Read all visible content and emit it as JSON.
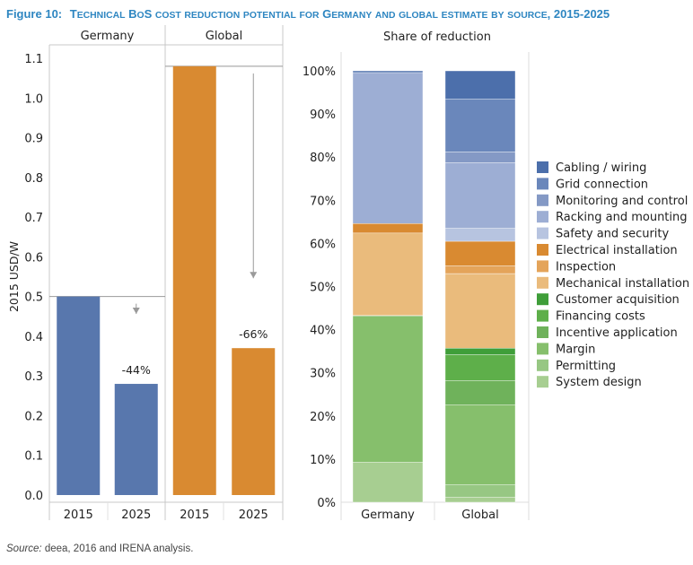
{
  "figure": {
    "title_prefix": "Figure 10:",
    "title_main": "Technical BoS cost reduction potential for Germany and global estimate by source, 2015-2025",
    "source_label": "Source:",
    "source_text": " deea, 2016 and IRENA analysis."
  },
  "chart_data": [
    {
      "type": "bar",
      "ylabel": "2015 USD/W",
      "ylim": [
        0,
        1.1
      ],
      "yticks": [
        "0.0",
        "0.1",
        "0.2",
        "0.3",
        "0.4",
        "0.5",
        "0.6",
        "0.7",
        "0.8",
        "0.9",
        "1.0",
        "1.1"
      ],
      "grid": false,
      "panels": [
        {
          "name": "Germany",
          "color": "#5877ad",
          "categories": [
            "2015",
            "2025"
          ],
          "values": [
            0.5,
            0.28
          ],
          "annotation": "-44%"
        },
        {
          "name": "Global",
          "color": "#d98a31",
          "categories": [
            "2015",
            "2025"
          ],
          "values": [
            1.08,
            0.37
          ],
          "annotation": "-66%"
        }
      ]
    },
    {
      "type": "bar",
      "stacked": true,
      "title": "Share of reduction",
      "categories": [
        "Germany",
        "Global"
      ],
      "ylim": [
        0,
        100
      ],
      "yticks": [
        "0%",
        "10%",
        "20%",
        "30%",
        "40%",
        "50%",
        "60%",
        "70%",
        "80%",
        "90%",
        "100%"
      ],
      "legend_position": "right",
      "series": [
        {
          "name": "Cabling / wiring",
          "color": "#4c6fab",
          "values": [
            0.4,
            6.5
          ]
        },
        {
          "name": "Grid connection",
          "color": "#6a87bb",
          "values": [
            0,
            12.3
          ]
        },
        {
          "name": "Monitoring and control",
          "color": "#8499c5",
          "values": [
            0,
            2.5
          ]
        },
        {
          "name": "Racking and mounting",
          "color": "#9daed4",
          "values": [
            35.0,
            15.2
          ]
        },
        {
          "name": "Safety and security",
          "color": "#b7c4e0",
          "values": [
            0,
            3.0
          ]
        },
        {
          "name": "Electrical installation",
          "color": "#d98a31",
          "values": [
            2.2,
            5.7
          ]
        },
        {
          "name": "Inspection",
          "color": "#e4a45a",
          "values": [
            0,
            1.8
          ]
        },
        {
          "name": "Mechanical installation",
          "color": "#eabb7c",
          "values": [
            19.1,
            17.3
          ]
        },
        {
          "name": "Customer acquisition",
          "color": "#3f9e39",
          "values": [
            0,
            1.5
          ]
        },
        {
          "name": "Financing costs",
          "color": "#5eaf4a",
          "values": [
            0,
            6.0
          ]
        },
        {
          "name": "Incentive application",
          "color": "#6fb25b",
          "values": [
            0.2,
            5.6
          ]
        },
        {
          "name": "Margin",
          "color": "#86bf6c",
          "values": [
            33.8,
            18.5
          ]
        },
        {
          "name": "Permitting",
          "color": "#97c783",
          "values": [
            0,
            2.9
          ]
        },
        {
          "name": "System design",
          "color": "#a7ce91",
          "values": [
            9.3,
            1.2
          ]
        }
      ]
    }
  ]
}
